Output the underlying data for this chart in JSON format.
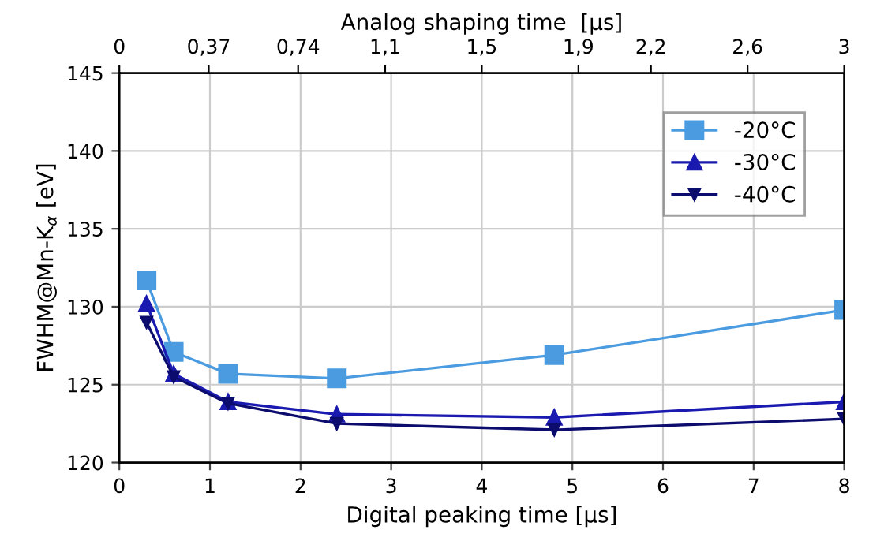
{
  "chart_data": {
    "type": "line",
    "xlabel": "Digital peaking time [µs]",
    "ylabel": "FWHM@Mn-K$_{α}$ [eV]",
    "x2label": "Analog shaping time  [µs]",
    "x": [
      0.3,
      0.6,
      1.2,
      2.4,
      4.8,
      8
    ],
    "series": [
      {
        "name": "-20°C",
        "color": "#4a9be0",
        "marker": "square",
        "values": [
          131.7,
          127.1,
          125.7,
          125.4,
          126.9,
          129.8
        ]
      },
      {
        "name": "-30°C",
        "color": "#1a1ab0",
        "marker": "triangle",
        "values": [
          130.2,
          125.7,
          123.9,
          123.1,
          122.9,
          123.9
        ]
      },
      {
        "name": "-40°C",
        "color": "#0c0c6e",
        "marker": "triangle-down",
        "values": [
          129.0,
          125.5,
          123.8,
          122.5,
          122.1,
          122.8
        ]
      }
    ],
    "xlim": [
      0,
      8
    ],
    "xticks": [
      0,
      1,
      2,
      3,
      4,
      5,
      6,
      7,
      8
    ],
    "x2lim": [
      0,
      3
    ],
    "x2ticks": [
      {
        "value": 0,
        "label": "0"
      },
      {
        "value": 0.37,
        "label": "0,37"
      },
      {
        "value": 0.74,
        "label": "0,74"
      },
      {
        "value": 1.1,
        "label": "1,1"
      },
      {
        "value": 1.5,
        "label": "1,5"
      },
      {
        "value": 1.9,
        "label": "1,9"
      },
      {
        "value": 2.2,
        "label": "2,2"
      },
      {
        "value": 2.6,
        "label": "2,6"
      },
      {
        "value": 3,
        "label": "3"
      }
    ],
    "ylim": [
      120,
      145
    ],
    "yticks": [
      120,
      125,
      130,
      135,
      140,
      145
    ],
    "grid": true,
    "legend": "top right",
    "line_style": "solid"
  }
}
